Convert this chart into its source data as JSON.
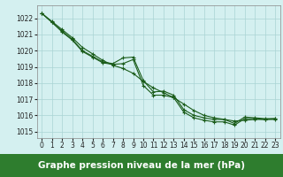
{
  "x": [
    0,
    1,
    2,
    3,
    4,
    5,
    6,
    7,
    8,
    9,
    10,
    11,
    12,
    13,
    14,
    15,
    16,
    17,
    18,
    19,
    20,
    21,
    22,
    23
  ],
  "line_smooth": [
    1022.3,
    1021.8,
    1021.3,
    1020.8,
    1020.2,
    1019.8,
    1019.4,
    1019.1,
    1018.9,
    1018.6,
    1018.1,
    1017.7,
    1017.4,
    1017.1,
    1016.7,
    1016.3,
    1016.0,
    1015.85,
    1015.75,
    1015.65,
    1015.7,
    1015.75,
    1015.75,
    1015.8
  ],
  "line_mid": [
    1022.3,
    1021.75,
    1021.2,
    1020.7,
    1020.0,
    1019.65,
    1019.3,
    1019.2,
    1019.55,
    1019.6,
    1018.15,
    1017.45,
    1017.5,
    1017.25,
    1016.35,
    1016.0,
    1015.85,
    1015.75,
    1015.75,
    1015.5,
    1015.9,
    1015.85,
    1015.8,
    1015.8
  ],
  "line_low": [
    1022.3,
    1021.75,
    1021.15,
    1020.65,
    1019.95,
    1019.6,
    1019.25,
    1019.15,
    1019.2,
    1019.45,
    1017.85,
    1017.25,
    1017.25,
    1017.1,
    1016.2,
    1015.85,
    1015.7,
    1015.6,
    1015.6,
    1015.4,
    1015.8,
    1015.8,
    1015.75,
    1015.75
  ],
  "ylim": [
    1014.6,
    1022.8
  ],
  "xlim": [
    -0.5,
    23.5
  ],
  "yticks": [
    1015,
    1016,
    1017,
    1018,
    1019,
    1020,
    1021,
    1022
  ],
  "xticks": [
    0,
    1,
    2,
    3,
    4,
    5,
    6,
    7,
    8,
    9,
    10,
    11,
    12,
    13,
    14,
    15,
    16,
    17,
    18,
    19,
    20,
    21,
    22,
    23
  ],
  "xlabel": "Graphe pression niveau de la mer (hPa)",
  "line_color": "#1a5c1a",
  "bg_color": "#d4f0f0",
  "grid_color": "#aad4d4",
  "spine_color": "#888888",
  "xlabel_bg": "#2e7d2e",
  "xlabel_color": "#ffffff",
  "tick_label_fontsize": 5.5,
  "xlabel_fontsize": 7.5,
  "fig_width": 3.2,
  "fig_height": 2.0,
  "dpi": 100
}
